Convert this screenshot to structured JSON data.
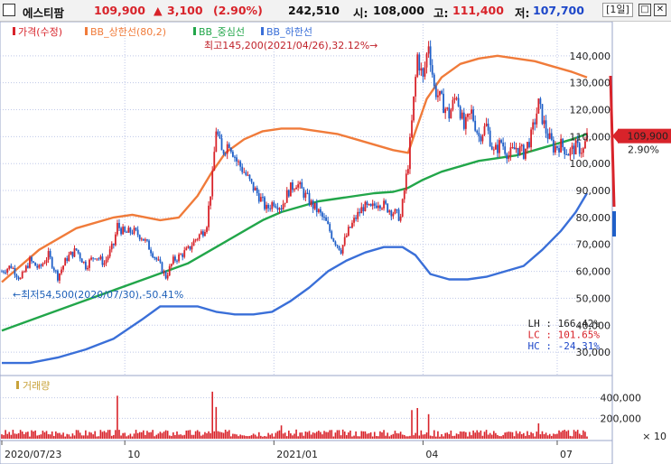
{
  "header": {
    "stock_name": "에스티팜",
    "price": "109,900",
    "change_arrow": "▲",
    "change": "3,100",
    "change_pct": "(2.90%)",
    "volume": "242,510",
    "open_label": "시:",
    "open": "108,000",
    "high_label": "고:",
    "high": "111,400",
    "low_label": "저:",
    "low": "107,700",
    "period": "[1일]",
    "restore_icon": "restore-window-icon",
    "close_icon": "close-window-icon"
  },
  "colors": {
    "up": "#d8232a",
    "down": "#1f5fc8",
    "upper_band": "#f07b3a",
    "middle_band": "#22a64a",
    "lower_band": "#3a6fd8",
    "grid": "#bfc8e8",
    "volume_bar": "#d8232a"
  },
  "chart_data": {
    "type": "candlestick",
    "legend": [
      {
        "label": "가격(수정)",
        "color": "#d8232a"
      },
      {
        "label": "BB_상한선(80,2)",
        "color": "#f07b3a"
      },
      {
        "label": "BB_중심선",
        "color": "#22a64a"
      },
      {
        "label": "BB_하한선",
        "color": "#3a6fd8"
      }
    ],
    "x_ticks": [
      "2020/07/23",
      "10",
      "2021/01",
      "04",
      "07"
    ],
    "y_ticks": [
      30000,
      40000,
      50000,
      60000,
      70000,
      80000,
      90000,
      100000,
      110000,
      120000,
      130000,
      140000
    ],
    "y_tick_labels": [
      "30,000",
      "40,000",
      "50,000",
      "60,000",
      "70,000",
      "80,000",
      "90,000",
      "100,000",
      "110,000",
      "120,000",
      "130,000",
      "140,000"
    ],
    "ylim": [
      22000,
      152000
    ],
    "current_price_label": "109,900",
    "current_pct_label": "2.90%",
    "annotations": {
      "max": "최고145,200(2021/04/26),32.12%",
      "min": "최저54,500(2020/07/30),-50.41%"
    },
    "stats": [
      {
        "label": "LH : 166.42%",
        "color": "#222222"
      },
      {
        "label": "LC : 101.65%",
        "color": "#d8232a"
      },
      {
        "label": "HC : -24.31%",
        "color": "#1d47c9"
      }
    ],
    "months_range": [
      "2020-07-23",
      "2021-08-10"
    ],
    "price_path": [
      [
        0,
        60000
      ],
      [
        5,
        62000
      ],
      [
        10,
        57000
      ],
      [
        15,
        64000
      ],
      [
        20,
        61000
      ],
      [
        25,
        66000
      ],
      [
        30,
        58000
      ],
      [
        35,
        65000
      ],
      [
        40,
        68000
      ],
      [
        45,
        62000
      ],
      [
        50,
        66000
      ],
      [
        55,
        63000
      ],
      [
        60,
        70000
      ],
      [
        62,
        77000
      ],
      [
        66,
        74000
      ],
      [
        70,
        75000
      ],
      [
        75,
        73000
      ],
      [
        80,
        68000
      ],
      [
        85,
        62000
      ],
      [
        88,
        58000
      ],
      [
        92,
        64000
      ],
      [
        96,
        66000
      ],
      [
        100,
        68000
      ],
      [
        104,
        72000
      ],
      [
        108,
        75000
      ],
      [
        110,
        78000
      ],
      [
        113,
        95000
      ],
      [
        115,
        113000
      ],
      [
        118,
        104000
      ],
      [
        122,
        108000
      ],
      [
        126,
        101000
      ],
      [
        130,
        97000
      ],
      [
        134,
        92000
      ],
      [
        138,
        88000
      ],
      [
        142,
        83000
      ],
      [
        146,
        86000
      ],
      [
        150,
        84000
      ],
      [
        154,
        90000
      ],
      [
        158,
        93000
      ],
      [
        162,
        89000
      ],
      [
        166,
        85000
      ],
      [
        170,
        82000
      ],
      [
        174,
        78000
      ],
      [
        178,
        72000
      ],
      [
        182,
        68000
      ],
      [
        186,
        75000
      ],
      [
        190,
        80000
      ],
      [
        194,
        84000
      ],
      [
        198,
        83000
      ],
      [
        202,
        86000
      ],
      [
        206,
        84000
      ],
      [
        210,
        82000
      ],
      [
        214,
        80000
      ],
      [
        218,
        100000
      ],
      [
        220,
        115000
      ],
      [
        223,
        140000
      ],
      [
        226,
        131000
      ],
      [
        229,
        145000
      ],
      [
        232,
        128000
      ],
      [
        236,
        123000
      ],
      [
        240,
        118000
      ],
      [
        244,
        126000
      ],
      [
        248,
        113000
      ],
      [
        252,
        119000
      ],
      [
        256,
        110000
      ],
      [
        260,
        114000
      ],
      [
        264,
        104000
      ],
      [
        268,
        108000
      ],
      [
        272,
        103000
      ],
      [
        276,
        106000
      ],
      [
        280,
        104000
      ],
      [
        284,
        110000
      ],
      [
        288,
        122000
      ],
      [
        292,
        112000
      ],
      [
        296,
        106000
      ],
      [
        300,
        107000
      ],
      [
        304,
        104000
      ],
      [
        308,
        106000
      ],
      [
        312,
        105000
      ],
      [
        314,
        109900
      ]
    ],
    "upper_band_path": [
      [
        0,
        56000
      ],
      [
        20,
        68000
      ],
      [
        40,
        76000
      ],
      [
        60,
        80000
      ],
      [
        70,
        81000
      ],
      [
        85,
        79000
      ],
      [
        95,
        80000
      ],
      [
        105,
        88000
      ],
      [
        112,
        96000
      ],
      [
        120,
        104000
      ],
      [
        130,
        109000
      ],
      [
        140,
        112000
      ],
      [
        150,
        113000
      ],
      [
        160,
        113000
      ],
      [
        170,
        112000
      ],
      [
        180,
        111000
      ],
      [
        190,
        109000
      ],
      [
        200,
        107000
      ],
      [
        210,
        105000
      ],
      [
        218,
        104000
      ],
      [
        222,
        112000
      ],
      [
        228,
        124000
      ],
      [
        236,
        132000
      ],
      [
        246,
        137000
      ],
      [
        256,
        139000
      ],
      [
        266,
        140000
      ],
      [
        276,
        139000
      ],
      [
        286,
        138000
      ],
      [
        296,
        136000
      ],
      [
        306,
        134000
      ],
      [
        314,
        132000
      ]
    ],
    "middle_band_path": [
      [
        0,
        38000
      ],
      [
        20,
        43000
      ],
      [
        40,
        48000
      ],
      [
        60,
        53000
      ],
      [
        80,
        58000
      ],
      [
        100,
        63000
      ],
      [
        110,
        67000
      ],
      [
        120,
        71000
      ],
      [
        130,
        75000
      ],
      [
        140,
        79000
      ],
      [
        150,
        82000
      ],
      [
        160,
        84000
      ],
      [
        170,
        86000
      ],
      [
        180,
        87000
      ],
      [
        190,
        88000
      ],
      [
        200,
        89000
      ],
      [
        210,
        89500
      ],
      [
        218,
        91000
      ],
      [
        226,
        94000
      ],
      [
        236,
        97000
      ],
      [
        246,
        99000
      ],
      [
        256,
        101000
      ],
      [
        266,
        102000
      ],
      [
        276,
        103000
      ],
      [
        286,
        105000
      ],
      [
        296,
        107000
      ],
      [
        306,
        109000
      ],
      [
        314,
        111000
      ]
    ],
    "lower_band_path": [
      [
        0,
        26000
      ],
      [
        15,
        26000
      ],
      [
        30,
        28000
      ],
      [
        45,
        31000
      ],
      [
        60,
        35000
      ],
      [
        75,
        42000
      ],
      [
        85,
        47000
      ],
      [
        95,
        47000
      ],
      [
        105,
        47000
      ],
      [
        115,
        45000
      ],
      [
        125,
        44000
      ],
      [
        135,
        44000
      ],
      [
        145,
        45000
      ],
      [
        155,
        49000
      ],
      [
        165,
        54000
      ],
      [
        175,
        60000
      ],
      [
        185,
        64000
      ],
      [
        195,
        67000
      ],
      [
        205,
        69000
      ],
      [
        215,
        69000
      ],
      [
        222,
        66000
      ],
      [
        230,
        59000
      ],
      [
        240,
        57000
      ],
      [
        250,
        57000
      ],
      [
        260,
        58000
      ],
      [
        270,
        60000
      ],
      [
        280,
        62000
      ],
      [
        290,
        68000
      ],
      [
        300,
        75000
      ],
      [
        308,
        82000
      ],
      [
        314,
        89000
      ]
    ],
    "volume": {
      "title": "거래량",
      "y_ticks": [
        "400,000",
        "200,000"
      ],
      "multiplier": "× 10",
      "ylim": [
        0,
        600000
      ]
    }
  }
}
